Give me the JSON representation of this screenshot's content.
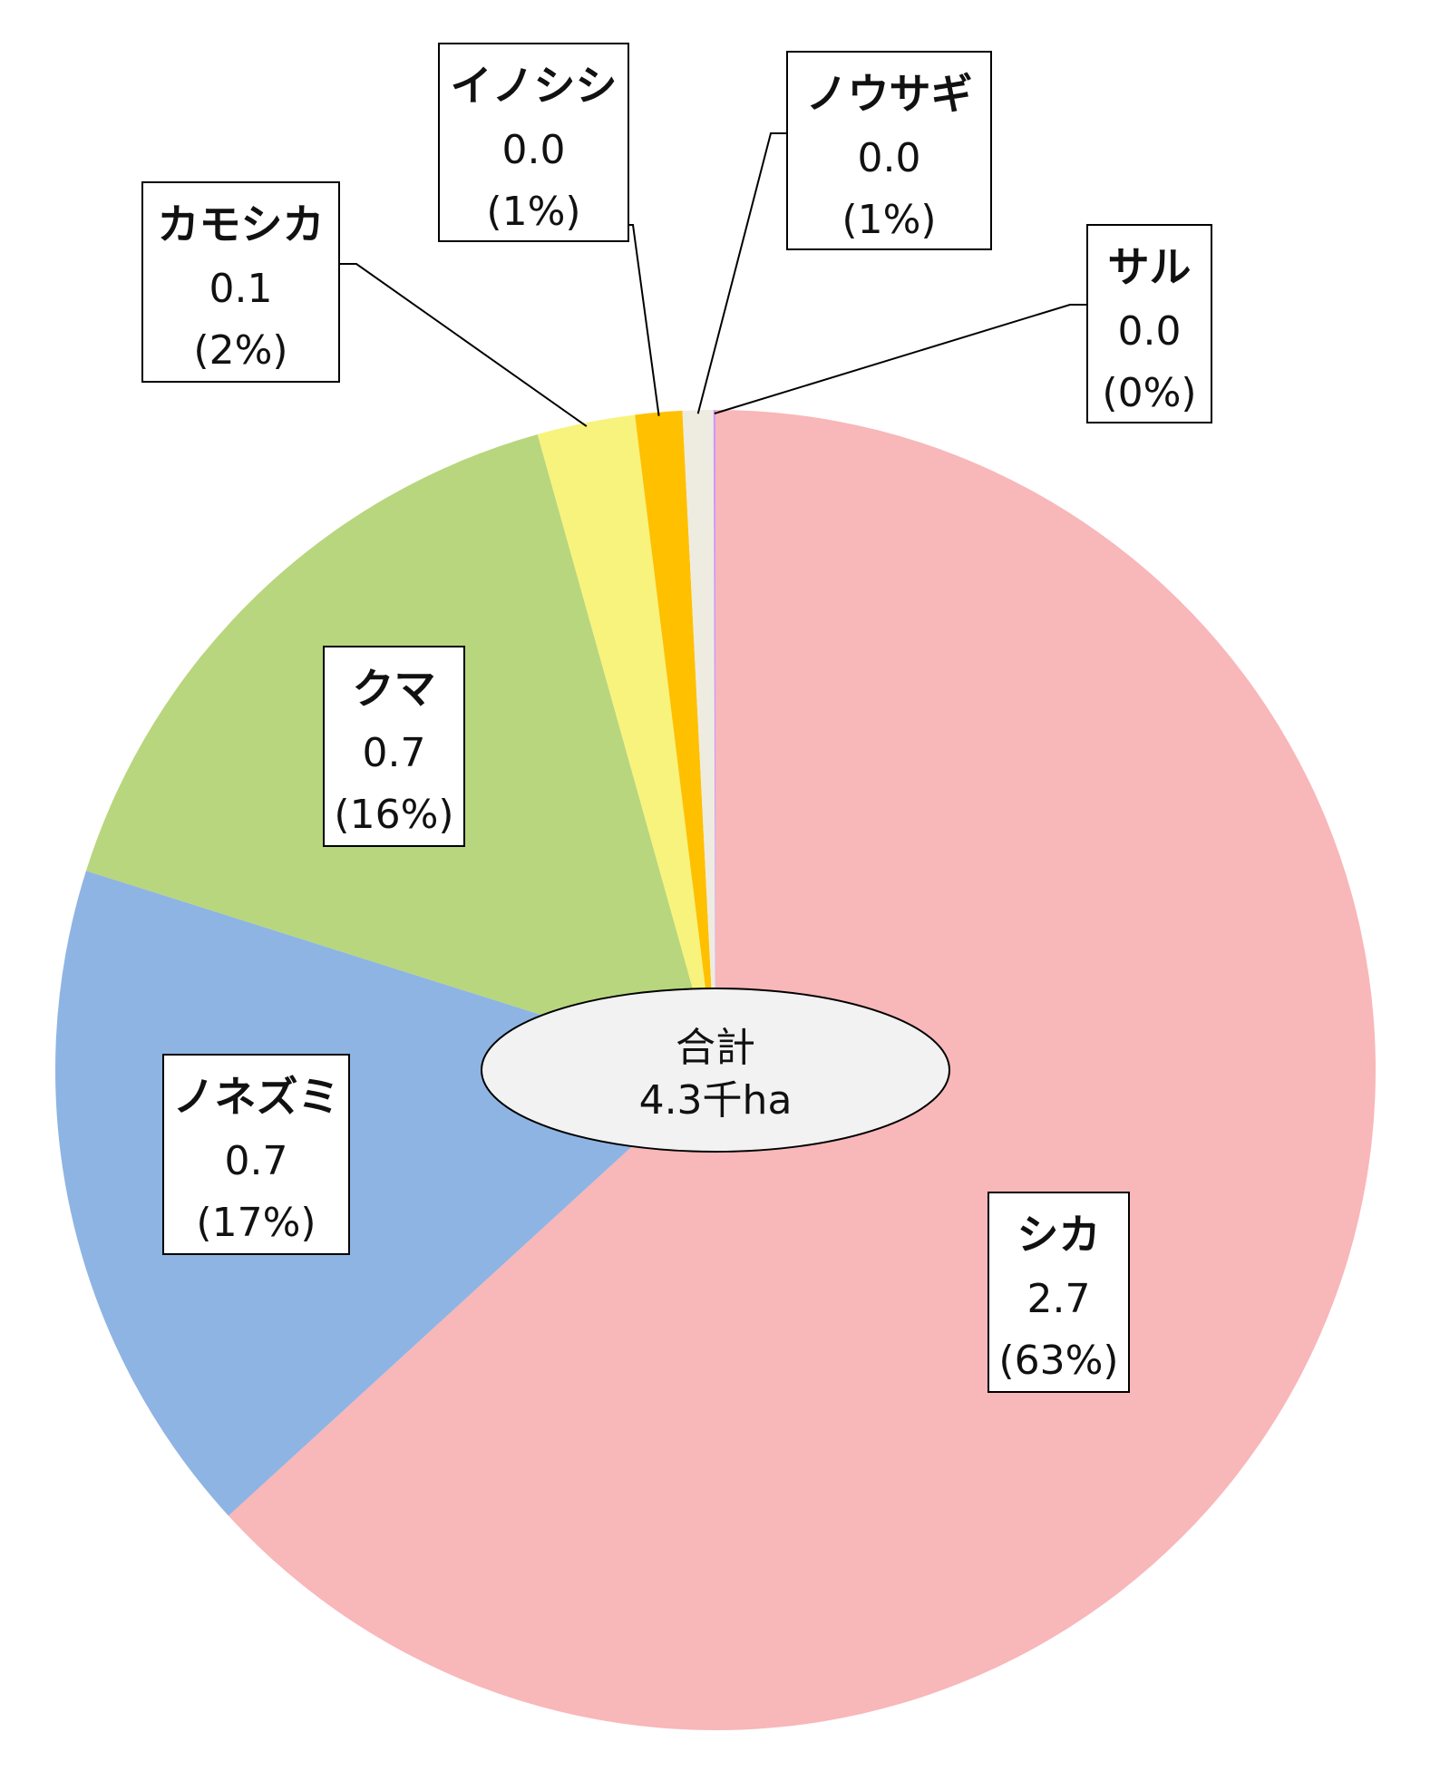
{
  "chart_data": {
    "type": "pie",
    "slices": [
      {
        "name": "シカ",
        "value": 2.7,
        "value_label": "2.7",
        "percent_label": "(63%)",
        "share": 63.3,
        "color": "#F8B7B9"
      },
      {
        "name": "ノネズミ",
        "value": 0.7,
        "value_label": "0.7",
        "percent_label": "(17%)",
        "share": 16.7,
        "color": "#8EB4E3"
      },
      {
        "name": "クマ",
        "value": 0.7,
        "value_label": "0.7",
        "percent_label": "(16%)",
        "share": 15.8,
        "color": "#B8D67D"
      },
      {
        "name": "カモシカ",
        "value": 0.1,
        "value_label": "0.1",
        "percent_label": "(2%)",
        "share": 2.4,
        "color": "#F7F37C"
      },
      {
        "name": "イノシシ",
        "value": 0.0,
        "value_label": "0.0",
        "percent_label": "(1%)",
        "share": 1.15,
        "color": "#FFC000"
      },
      {
        "name": "ノウサギ",
        "value": 0.0,
        "value_label": "0.0",
        "percent_label": "(1%)",
        "share": 0.75,
        "color": "#EEECE1"
      },
      {
        "name": "サル",
        "value": 0.0,
        "value_label": "0.0",
        "percent_label": "(0%)",
        "share": 0.05,
        "color": "#CC99FF"
      }
    ],
    "total_label": "合計",
    "total_value": "4.3千ha"
  }
}
